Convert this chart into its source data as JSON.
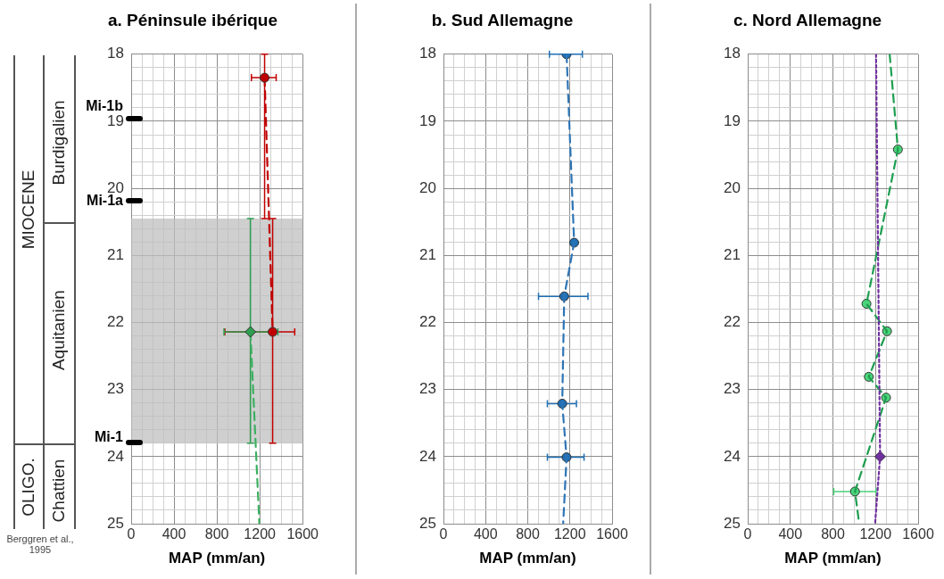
{
  "chart_data": [
    {
      "type": "scatter",
      "title": "a. Péninsule ibérique",
      "xlabel": "MAP (mm/an)",
      "xlim": [
        0,
        1600
      ],
      "ylim": [
        25,
        18
      ],
      "grid": true,
      "xticks": [
        0,
        {
          "value": 100,
          "label": null
        },
        {
          "value": 200,
          "label": null
        },
        {
          "value": 300,
          "label": null
        },
        400,
        {
          "value": 500,
          "label": null
        },
        {
          "value": 600,
          "label": null
        },
        {
          "value": 700,
          "label": null
        },
        800,
        {
          "value": 900,
          "label": null
        },
        {
          "value": 1000,
          "label": null
        },
        {
          "value": 1100,
          "label": null
        },
        1200,
        {
          "value": 1300,
          "label": null
        },
        {
          "value": 1400,
          "label": null
        },
        {
          "value": 1500,
          "label": null
        },
        1600
      ],
      "yticks": [
        18,
        {
          "value": 18.2,
          "label": null
        },
        {
          "value": 18.4,
          "label": null
        },
        {
          "value": 18.6,
          "label": null
        },
        {
          "value": 18.8,
          "label": null
        },
        19,
        {
          "value": 19.2,
          "label": null
        },
        {
          "value": 19.4,
          "label": null
        },
        {
          "value": 19.6,
          "label": null
        },
        {
          "value": 19.8,
          "label": null
        },
        20,
        {
          "value": 20.2,
          "label": null
        },
        {
          "value": 20.4,
          "label": null
        },
        {
          "value": 20.6,
          "label": null
        },
        {
          "value": 20.8,
          "label": null
        },
        21,
        {
          "value": 21.2,
          "label": null
        },
        {
          "value": 21.4,
          "label": null
        },
        {
          "value": 21.6,
          "label": null
        },
        {
          "value": 21.8,
          "label": null
        },
        22,
        {
          "value": 22.2,
          "label": null
        },
        {
          "value": 22.4,
          "label": null
        },
        {
          "value": 22.6,
          "label": null
        },
        {
          "value": 22.8,
          "label": null
        },
        23,
        {
          "value": 23.2,
          "label": null
        },
        {
          "value": 23.4,
          "label": null
        },
        {
          "value": 23.6,
          "label": null
        },
        {
          "value": 23.8,
          "label": null
        },
        24,
        {
          "value": 24.2,
          "label": null
        },
        {
          "value": 24.4,
          "label": null
        },
        {
          "value": 24.6,
          "label": null
        },
        {
          "value": 24.8,
          "label": null
        },
        25
      ],
      "bands": [
        {
          "axis": "y",
          "from": 20.45,
          "to": 23.8,
          "color": "#bfbfbf"
        }
      ],
      "series": [
        {
          "type": "line",
          "color": "#c00000",
          "marker": "circle",
          "line_style": "dashed",
          "x": [
            1245,
            1320
          ],
          "values": [
            18.35,
            22.14
          ],
          "xerrors": [
            [
              1122,
              1353
            ],
            [
              874,
              1526
            ]
          ],
          "errors": [
            [
              18,
              20.45
            ],
            [
              20.45,
              23.8
            ]
          ]
        },
        {
          "type": "scatter",
          "color": "#2e9e50",
          "marker": "diamond",
          "x": [
            1113
          ],
          "values": [
            22.14
          ],
          "xerrors": [
            [
              866,
              1369
            ]
          ],
          "errors": [
            [
              20.45,
              23.8
            ]
          ]
        },
        {
          "type": "line",
          "color": "#3cb060",
          "marker": "none",
          "line_style": "dashed",
          "x": [
            1113,
            1196
          ],
          "values": [
            22.14,
            25
          ]
        }
      ],
      "annotations": [
        "MIOCENE",
        "OLIGO.",
        "Burdigalien",
        "Aquitanien",
        "Chattien",
        "Berggren et al., 1995",
        "Mi-1b",
        "Mi-1a",
        "Mi-1"
      ]
    },
    {
      "type": "scatter",
      "title": "b. Sud Allemagne",
      "xlabel": "MAP (mm/an)",
      "xlim": [
        0,
        1600
      ],
      "ylim": [
        25,
        18
      ],
      "grid": true,
      "xticks": [
        0,
        {
          "value": 100,
          "label": null
        },
        {
          "value": 200,
          "label": null
        },
        {
          "value": 300,
          "label": null
        },
        400,
        {
          "value": 500,
          "label": null
        },
        {
          "value": 600,
          "label": null
        },
        {
          "value": 700,
          "label": null
        },
        800,
        {
          "value": 900,
          "label": null
        },
        {
          "value": 1000,
          "label": null
        },
        {
          "value": 1100,
          "label": null
        },
        1200,
        {
          "value": 1300,
          "label": null
        },
        {
          "value": 1400,
          "label": null
        },
        {
          "value": 1500,
          "label": null
        },
        1600
      ],
      "yticks": [
        18,
        {
          "value": 18.2,
          "label": null
        },
        {
          "value": 18.4,
          "label": null
        },
        {
          "value": 18.6,
          "label": null
        },
        {
          "value": 18.8,
          "label": null
        },
        19,
        {
          "value": 19.2,
          "label": null
        },
        {
          "value": 19.4,
          "label": null
        },
        {
          "value": 19.6,
          "label": null
        },
        {
          "value": 19.8,
          "label": null
        },
        20,
        {
          "value": 20.2,
          "label": null
        },
        {
          "value": 20.4,
          "label": null
        },
        {
          "value": 20.6,
          "label": null
        },
        {
          "value": 20.8,
          "label": null
        },
        21,
        {
          "value": 21.2,
          "label": null
        },
        {
          "value": 21.4,
          "label": null
        },
        {
          "value": 21.6,
          "label": null
        },
        {
          "value": 21.8,
          "label": null
        },
        22,
        {
          "value": 22.2,
          "label": null
        },
        {
          "value": 22.4,
          "label": null
        },
        {
          "value": 22.6,
          "label": null
        },
        {
          "value": 22.8,
          "label": null
        },
        23,
        {
          "value": 23.2,
          "label": null
        },
        {
          "value": 23.4,
          "label": null
        },
        {
          "value": 23.6,
          "label": null
        },
        {
          "value": 23.8,
          "label": null
        },
        24,
        {
          "value": 24.2,
          "label": null
        },
        {
          "value": 24.4,
          "label": null
        },
        {
          "value": 24.6,
          "label": null
        },
        {
          "value": 24.8,
          "label": null
        },
        25
      ],
      "series": [
        {
          "type": "line",
          "color": "#2e75b6",
          "marker": "none",
          "line_style": "dashed",
          "x": [
            1168,
            1240,
            1146,
            1127,
            1168,
            1136
          ],
          "values": [
            18,
            20.81,
            21.61,
            23.21,
            24.01,
            25
          ]
        },
        {
          "type": "scatter",
          "color": "#1f6fb5",
          "marker": "circle",
          "x": [
            1168,
            1240,
            1146,
            1127,
            1168
          ],
          "values": [
            18,
            20.81,
            21.61,
            23.21,
            24.01
          ],
          "xerrors": [
            [
              1005,
              1318
            ],
            null,
            [
              902,
              1371
            ],
            [
              986,
              1262
            ],
            [
              986,
              1334
            ]
          ]
        }
      ]
    },
    {
      "type": "scatter",
      "title": "c. Nord Allemagne",
      "xlabel": "MAP (mm/an)",
      "xlim": [
        0,
        1600
      ],
      "ylim": [
        25,
        18
      ],
      "grid": true,
      "xticks": [
        0,
        {
          "value": 100,
          "label": null
        },
        {
          "value": 200,
          "label": null
        },
        {
          "value": 300,
          "label": null
        },
        400,
        {
          "value": 500,
          "label": null
        },
        {
          "value": 600,
          "label": null
        },
        {
          "value": 700,
          "label": null
        },
        800,
        {
          "value": 900,
          "label": null
        },
        {
          "value": 1000,
          "label": null
        },
        {
          "value": 1100,
          "label": null
        },
        1200,
        {
          "value": 1300,
          "label": null
        },
        {
          "value": 1400,
          "label": null
        },
        {
          "value": 1500,
          "label": null
        },
        1600
      ],
      "yticks": [
        18,
        {
          "value": 18.2,
          "label": null
        },
        {
          "value": 18.4,
          "label": null
        },
        {
          "value": 18.6,
          "label": null
        },
        {
          "value": 18.8,
          "label": null
        },
        19,
        {
          "value": 19.2,
          "label": null
        },
        {
          "value": 19.4,
          "label": null
        },
        {
          "value": 19.6,
          "label": null
        },
        {
          "value": 19.8,
          "label": null
        },
        20,
        {
          "value": 20.2,
          "label": null
        },
        {
          "value": 20.4,
          "label": null
        },
        {
          "value": 20.6,
          "label": null
        },
        {
          "value": 20.8,
          "label": null
        },
        21,
        {
          "value": 21.2,
          "label": null
        },
        {
          "value": 21.4,
          "label": null
        },
        {
          "value": 21.6,
          "label": null
        },
        {
          "value": 21.8,
          "label": null
        },
        22,
        {
          "value": 22.2,
          "label": null
        },
        {
          "value": 22.4,
          "label": null
        },
        {
          "value": 22.6,
          "label": null
        },
        {
          "value": 22.8,
          "label": null
        },
        23,
        {
          "value": 23.2,
          "label": null
        },
        {
          "value": 23.4,
          "label": null
        },
        {
          "value": 23.6,
          "label": null
        },
        {
          "value": 23.8,
          "label": null
        },
        24,
        {
          "value": 24.2,
          "label": null
        },
        {
          "value": 24.4,
          "label": null
        },
        {
          "value": 24.6,
          "label": null
        },
        {
          "value": 24.8,
          "label": null
        },
        25
      ],
      "series": [
        {
          "type": "line",
          "color": "#7030a0",
          "marker": "none",
          "line_style": "dotted",
          "x": [
            1205,
            1243,
            1196
          ],
          "values": [
            18,
            24,
            25
          ]
        },
        {
          "type": "line",
          "color": "#1e9e50",
          "marker": "none",
          "line_style": "dashed",
          "x": [
            1333,
            1410,
            1115,
            1308,
            1137,
            1299,
            1007,
            1047
          ],
          "values": [
            18,
            19.42,
            21.72,
            22.13,
            22.81,
            23.12,
            24.52,
            25
          ]
        },
        {
          "type": "scatter",
          "color": "#4ad47a",
          "marker": "circle",
          "x": [
            1410,
            1115,
            1308,
            1137,
            1299,
            1007
          ],
          "values": [
            19.42,
            21.72,
            22.13,
            22.81,
            23.12,
            24.52
          ],
          "xerrors": [
            null,
            null,
            null,
            null,
            null,
            [
              808,
              1205
            ]
          ]
        },
        {
          "type": "scatter",
          "color": "#7030a0",
          "marker": "diamond",
          "x": [
            1243
          ],
          "values": [
            24
          ]
        }
      ]
    }
  ]
}
